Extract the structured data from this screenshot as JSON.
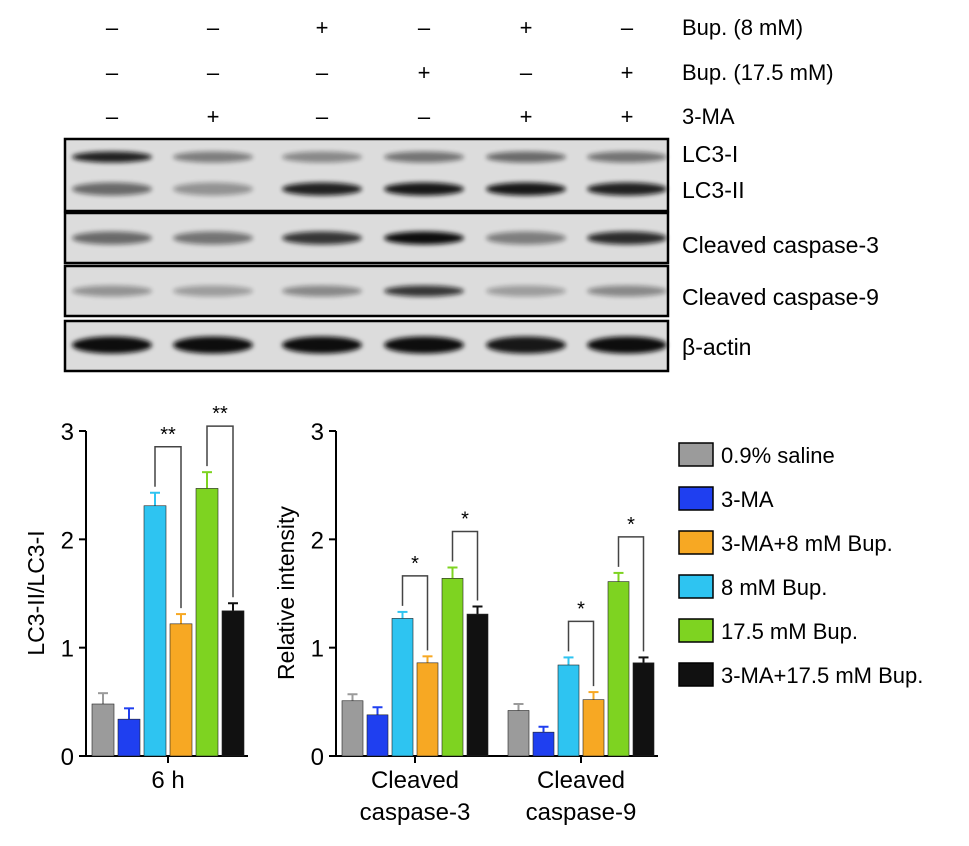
{
  "blot": {
    "treatment_rows": [
      {
        "label": "Bup. (8 mM)",
        "signs": [
          "–",
          "–",
          "+",
          "–",
          "+",
          "–"
        ]
      },
      {
        "label": "Bup. (17.5 mM)",
        "signs": [
          "–",
          "–",
          "–",
          "+",
          "–",
          "+"
        ]
      },
      {
        "label": "3-MA",
        "signs": [
          "–",
          "+",
          "–",
          "–",
          "+",
          "+"
        ]
      }
    ],
    "panels": [
      {
        "labels": [
          "LC3-I",
          "LC3-II"
        ]
      },
      {
        "labels": [
          "Cleaved caspase-3"
        ]
      },
      {
        "labels": [
          "Cleaved caspase-9"
        ]
      },
      {
        "labels": [
          "β-actin"
        ]
      }
    ]
  },
  "chart_data": [
    {
      "type": "bar",
      "ylabel": "LC3-II/LC3-I",
      "ylim": [
        0,
        3
      ],
      "yticks": [
        "0",
        "1",
        "2",
        "3"
      ],
      "categories": [
        "6 h"
      ],
      "series": [
        {
          "name": "0.9% saline",
          "color": "#9b9b9b",
          "values": [
            0.48
          ],
          "errors": [
            0.1
          ]
        },
        {
          "name": "3-MA",
          "color": "#1f3ff0",
          "values": [
            0.34
          ],
          "errors": [
            0.1
          ]
        },
        {
          "name": "8 mM Bup.",
          "color": "#2ec4f1",
          "values": [
            2.31
          ],
          "errors": [
            0.12
          ]
        },
        {
          "name": "3-MA+8 mM Bup.",
          "color": "#f7a823",
          "values": [
            1.22
          ],
          "errors": [
            0.09
          ]
        },
        {
          "name": "17.5 mM Bup.",
          "color": "#7ed321",
          "values": [
            2.47
          ],
          "errors": [
            0.15
          ]
        },
        {
          "name": "3-MA+17.5 mM Bup.",
          "color": "#111111",
          "values": [
            1.34
          ],
          "errors": [
            0.07
          ]
        }
      ],
      "annotations": [
        {
          "text": "**",
          "from_series": 2,
          "to_series": 3
        },
        {
          "text": "**",
          "from_series": 4,
          "to_series": 5
        }
      ]
    },
    {
      "type": "bar",
      "ylabel": "Relative intensity",
      "ylim": [
        0,
        3
      ],
      "yticks": [
        "0",
        "1",
        "2",
        "3"
      ],
      "categories": [
        [
          "Cleaved",
          "caspase-3"
        ],
        [
          "Cleaved",
          "caspase-9"
        ]
      ],
      "series": [
        {
          "name": "0.9% saline",
          "color": "#9b9b9b",
          "values": [
            0.51,
            0.42
          ],
          "errors": [
            0.06,
            0.06
          ]
        },
        {
          "name": "3-MA",
          "color": "#1f3ff0",
          "values": [
            0.38,
            0.22
          ],
          "errors": [
            0.07,
            0.05
          ]
        },
        {
          "name": "8 mM Bup.",
          "color": "#2ec4f1",
          "values": [
            1.27,
            0.84
          ],
          "errors": [
            0.06,
            0.07
          ]
        },
        {
          "name": "3-MA+8 mM Bup.",
          "color": "#f7a823",
          "values": [
            0.86,
            0.52
          ],
          "errors": [
            0.06,
            0.07
          ]
        },
        {
          "name": "17.5 mM Bup.",
          "color": "#7ed321",
          "values": [
            1.64,
            1.61
          ],
          "errors": [
            0.1,
            0.08
          ]
        },
        {
          "name": "3-MA+17.5 mM Bup.",
          "color": "#111111",
          "values": [
            1.31,
            0.86
          ],
          "errors": [
            0.07,
            0.05
          ]
        }
      ],
      "annotations": [
        {
          "text": "*",
          "category": 0,
          "from_series": 2,
          "to_series": 3
        },
        {
          "text": "*",
          "category": 0,
          "from_series": 4,
          "to_series": 5
        },
        {
          "text": "*",
          "category": 1,
          "from_series": 2,
          "to_series": 3
        },
        {
          "text": "*",
          "category": 1,
          "from_series": 4,
          "to_series": 5
        }
      ]
    }
  ],
  "legend": [
    {
      "label": "0.9% saline",
      "color": "#9b9b9b"
    },
    {
      "label": "3-MA",
      "color": "#1f3ff0"
    },
    {
      "label": "3-MA+8 mM Bup.",
      "color": "#f7a823"
    },
    {
      "label": "8 mM Bup.",
      "color": "#2ec4f1"
    },
    {
      "label": "17.5 mM Bup.",
      "color": "#7ed321"
    },
    {
      "label": "3-MA+17.5 mM Bup.",
      "color": "#111111"
    }
  ]
}
